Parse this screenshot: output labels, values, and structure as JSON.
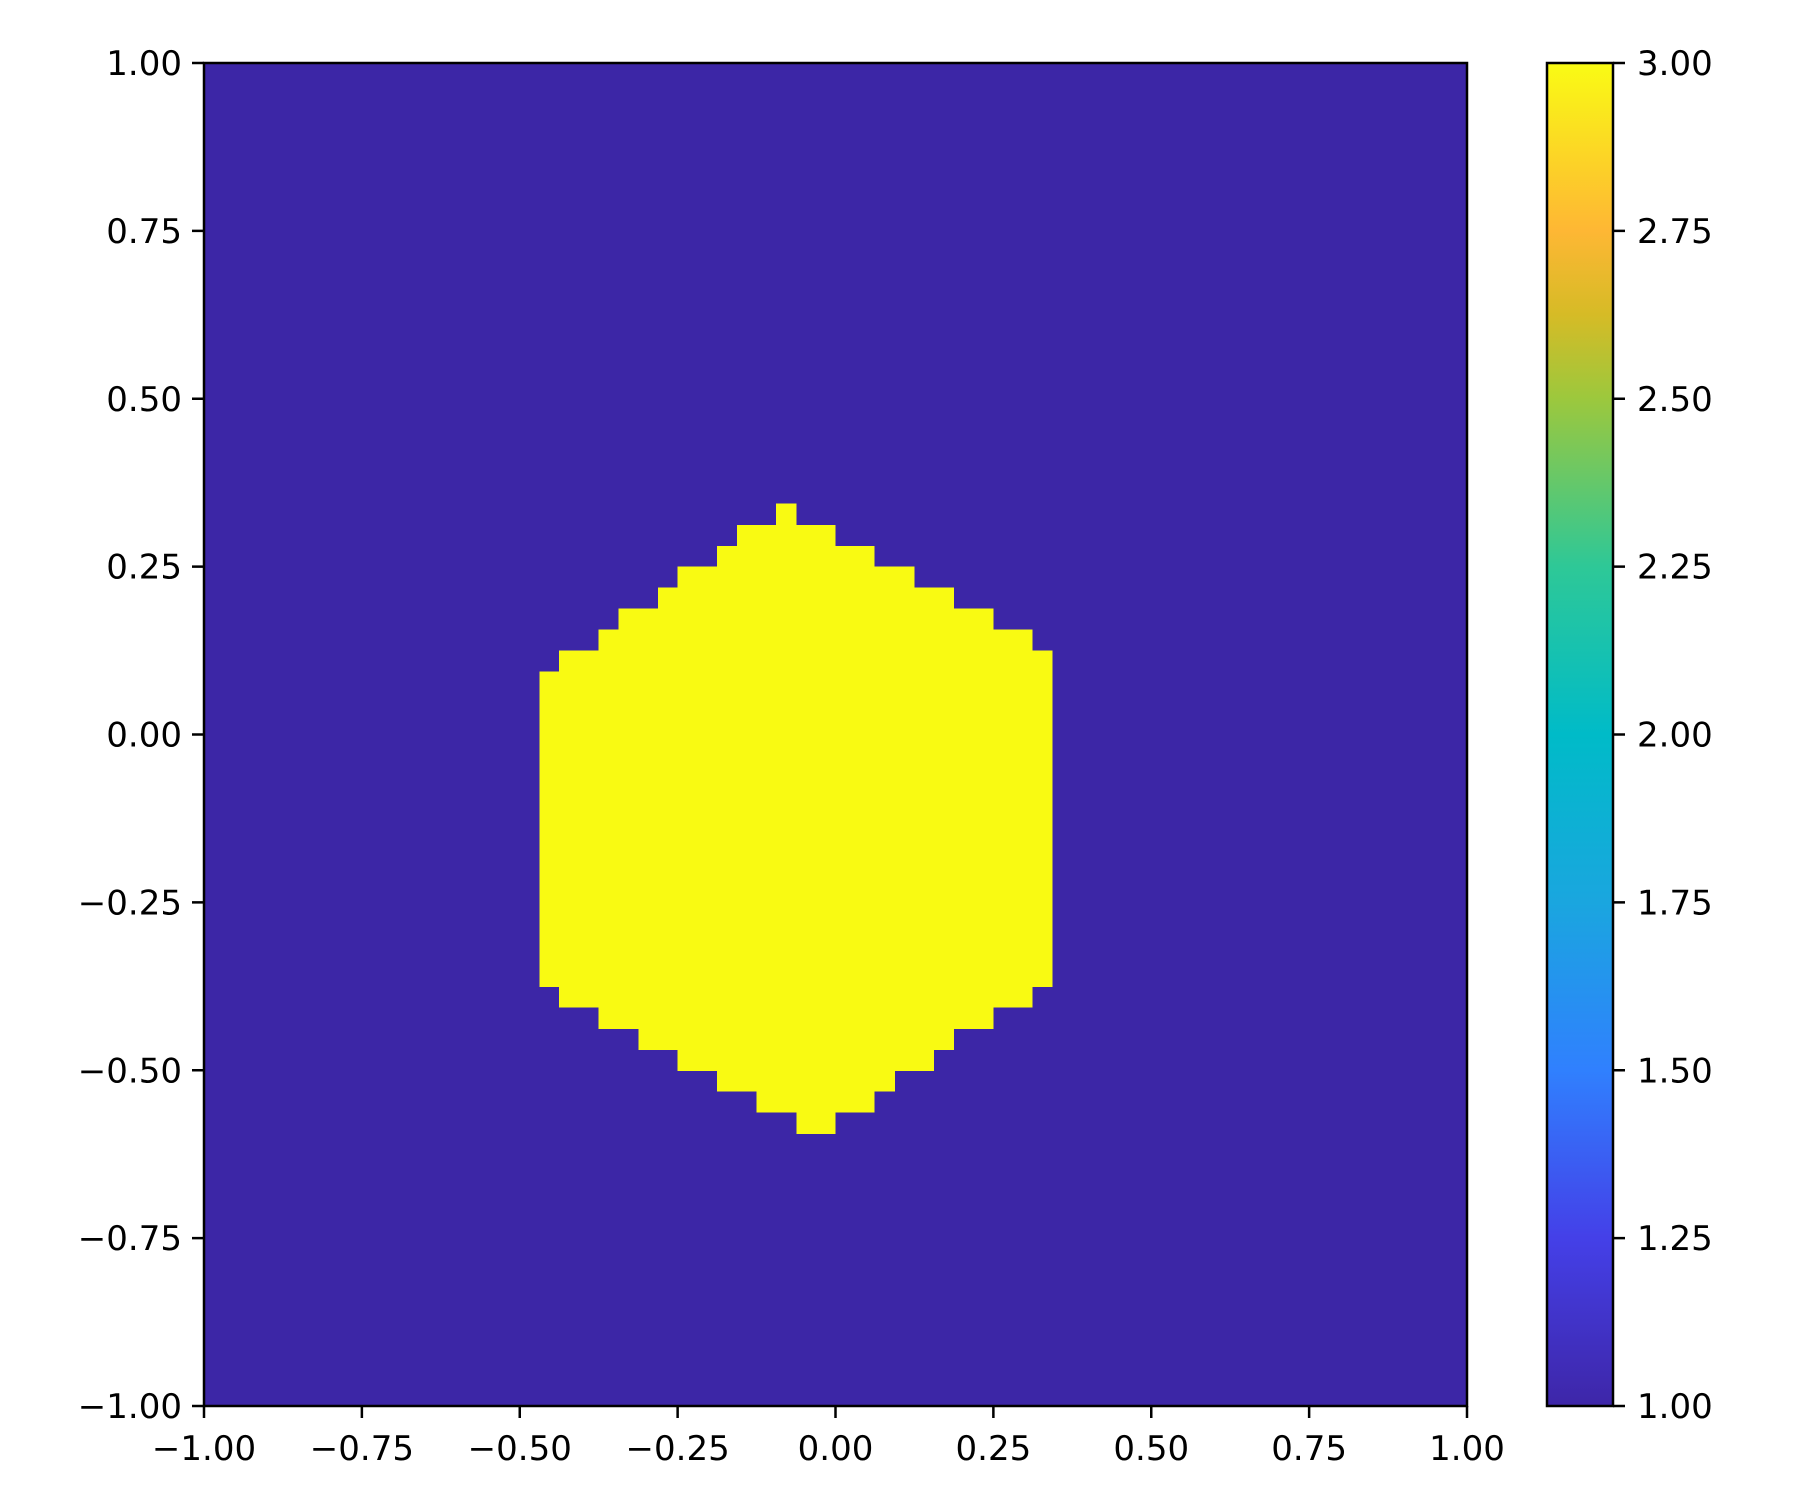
{
  "chart_data": {
    "type": "heatmap",
    "title": "",
    "xlabel": "",
    "ylabel": "",
    "xlim": [
      -1.0,
      1.0
    ],
    "ylim": [
      -1.0,
      1.0
    ],
    "grid": false,
    "x_ticks": [
      "−1.00",
      "−0.75",
      "−0.50",
      "−0.25",
      "0.00",
      "0.25",
      "0.50",
      "0.75",
      "1.00"
    ],
    "y_ticks": [
      "1.00",
      "0.75",
      "0.50",
      "0.25",
      "0.00",
      "−0.25",
      "−0.50",
      "−0.75",
      "−1.00"
    ],
    "x_tick_values": [
      -1.0,
      -0.75,
      -0.5,
      -0.25,
      0.0,
      0.25,
      0.5,
      0.75,
      1.0
    ],
    "y_tick_values": [
      1.0,
      0.75,
      0.5,
      0.25,
      0.0,
      -0.25,
      -0.5,
      -0.75,
      -1.0
    ],
    "background_value": 1.0,
    "region_value": 3.0,
    "region_shape": "pixelated hexagon",
    "region_rows": [
      {
        "y_top": 0.344,
        "y_bottom": 0.312,
        "x_left": -0.094,
        "x_right": -0.062
      },
      {
        "y_top": 0.312,
        "y_bottom": 0.281,
        "x_left": -0.156,
        "x_right": 0.0
      },
      {
        "y_top": 0.281,
        "y_bottom": 0.25,
        "x_left": -0.188,
        "x_right": 0.062
      },
      {
        "y_top": 0.25,
        "y_bottom": 0.219,
        "x_left": -0.25,
        "x_right": 0.125
      },
      {
        "y_top": 0.219,
        "y_bottom": 0.188,
        "x_left": -0.281,
        "x_right": 0.188
      },
      {
        "y_top": 0.188,
        "y_bottom": 0.156,
        "x_left": -0.344,
        "x_right": 0.25
      },
      {
        "y_top": 0.156,
        "y_bottom": 0.125,
        "x_left": -0.375,
        "x_right": 0.312
      },
      {
        "y_top": 0.125,
        "y_bottom": 0.094,
        "x_left": -0.438,
        "x_right": 0.344
      },
      {
        "y_top": 0.094,
        "y_bottom": -0.375,
        "x_left": -0.469,
        "x_right": 0.344
      },
      {
        "y_top": -0.375,
        "y_bottom": -0.406,
        "x_left": -0.438,
        "x_right": 0.312
      },
      {
        "y_top": -0.406,
        "y_bottom": -0.438,
        "x_left": -0.375,
        "x_right": 0.25
      },
      {
        "y_top": -0.438,
        "y_bottom": -0.469,
        "x_left": -0.312,
        "x_right": 0.188
      },
      {
        "y_top": -0.469,
        "y_bottom": -0.5,
        "x_left": -0.25,
        "x_right": 0.156
      },
      {
        "y_top": -0.5,
        "y_bottom": -0.531,
        "x_left": -0.188,
        "x_right": 0.094
      },
      {
        "y_top": -0.531,
        "y_bottom": -0.562,
        "x_left": -0.125,
        "x_right": 0.062
      },
      {
        "y_top": -0.562,
        "y_bottom": -0.594,
        "x_left": -0.062,
        "x_right": 0.0
      }
    ],
    "colorbar": {
      "vmin": 1.0,
      "vmax": 3.0,
      "ticks": [
        "3.00",
        "2.75",
        "2.50",
        "2.25",
        "2.00",
        "1.75",
        "1.50",
        "1.25",
        "1.00"
      ],
      "tick_values": [
        3.0,
        2.75,
        2.5,
        2.25,
        2.0,
        1.75,
        1.5,
        1.25,
        1.0
      ],
      "colormap": "parula",
      "color_stops": [
        {
          "value": 1.0,
          "color": "#3e26a8"
        },
        {
          "value": 1.25,
          "color": "#4440e8"
        },
        {
          "value": 1.5,
          "color": "#3080fe"
        },
        {
          "value": 1.75,
          "color": "#1aa6df"
        },
        {
          "value": 2.0,
          "color": "#00bbc8"
        },
        {
          "value": 2.25,
          "color": "#2ec897"
        },
        {
          "value": 2.5,
          "color": "#9cc83d"
        },
        {
          "value": 2.625,
          "color": "#d6bb26"
        },
        {
          "value": 2.75,
          "color": "#feb734"
        },
        {
          "value": 3.0,
          "color": "#f9fb14"
        }
      ]
    },
    "colors": {
      "background": "#3c26a6",
      "region": "#f9fa12"
    }
  }
}
